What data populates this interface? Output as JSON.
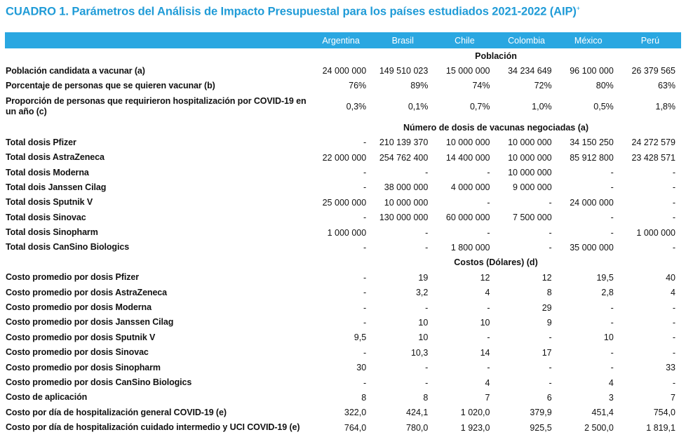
{
  "title": "CUADRO 1. Parámetros del Análisis de Impacto Presupuestal para los países estudiados 2021-2022 (AIP)",
  "title_sup": "+",
  "accent_color": "#2aa7e1",
  "title_color": "#1f9bd7",
  "countries": [
    "Argentina",
    "Brasil",
    "Chile",
    "Colombia",
    "México",
    "Perú"
  ],
  "sections": [
    {
      "heading": "Población",
      "rows": [
        {
          "label": "Población candidata a vacunar (a)",
          "values": [
            "24 000 000",
            "149 510 023",
            "15 000 000",
            "34 234 649",
            "96 100 000",
            "26 379 565"
          ]
        },
        {
          "label": "Porcentaje de personas que se quieren vacunar (b)",
          "values": [
            "76%",
            "89%",
            "74%",
            "72%",
            "80%",
            "63%"
          ]
        },
        {
          "label": "Proporción de personas que requirieron hospitalización por COVID-19 en un año (c)",
          "values": [
            "0,3%",
            "0,1%",
            "0,7%",
            "1,0%",
            "0,5%",
            "1,8%"
          ],
          "tall": true
        }
      ]
    },
    {
      "heading": "Número de dosis de vacunas negociadas (a)",
      "rows": [
        {
          "label": "Total dosis Pfizer",
          "values": [
            "-",
            "210 139 370",
            "10 000 000",
            "10 000 000",
            "34 150 250",
            "24 272 579"
          ]
        },
        {
          "label": "Total dosis AstraZeneca",
          "values": [
            "22 000 000",
            "254 762 400",
            "14 400 000",
            "10 000 000",
            "85 912 800",
            "23 428 571"
          ]
        },
        {
          "label": "Total dosis Moderna",
          "values": [
            "-",
            "-",
            "-",
            "10 000 000",
            "-",
            "-"
          ]
        },
        {
          "label": "Total dois Janssen Cilag",
          "values": [
            "-",
            "38 000 000",
            "4 000 000",
            "9 000 000",
            "-",
            "-"
          ]
        },
        {
          "label": "Total dosis Sputnik V",
          "values": [
            "25 000 000",
            "10 000 000",
            "-",
            "-",
            "24 000 000",
            "-"
          ]
        },
        {
          "label": "Total dosis Sinovac",
          "values": [
            "-",
            "130 000 000",
            "60 000 000",
            "7 500 000",
            "-",
            "-"
          ]
        },
        {
          "label": "Total dosis Sinopharm",
          "values": [
            "1 000 000",
            "-",
            "-",
            "-",
            "-",
            "1 000 000"
          ]
        },
        {
          "label": "Total dosis CanSino Biologics",
          "values": [
            "-",
            "-",
            "1 800 000",
            "-",
            "35 000 000",
            "-"
          ]
        }
      ]
    },
    {
      "heading": "Costos (Dólares) (d)",
      "rows": [
        {
          "label": "Costo promedio por dosis Pfizer",
          "values": [
            "-",
            "19",
            "12",
            "12",
            "19,5",
            "40"
          ]
        },
        {
          "label": "Costo promedio por dosis AstraZeneca",
          "values": [
            "-",
            "3,2",
            "4",
            "8",
            "2,8",
            "4"
          ]
        },
        {
          "label": "Costo promedio por dosis Moderna",
          "values": [
            "-",
            "-",
            "-",
            "29",
            "-",
            "-"
          ]
        },
        {
          "label": "Costo promedio por dosis Janssen Cilag",
          "values": [
            "-",
            "10",
            "10",
            "9",
            "-",
            "-"
          ]
        },
        {
          "label": "Costo promedio por dosis Sputnik V",
          "values": [
            "9,5",
            "10",
            "-",
            "-",
            "10",
            "-"
          ]
        },
        {
          "label": "Costo promedio por dosis Sinovac",
          "values": [
            "-",
            "10,3",
            "14",
            "17",
            "-",
            "-"
          ]
        },
        {
          "label": "Costo promedio por dosis Sinopharm",
          "values": [
            "30",
            "-",
            "-",
            "-",
            "-",
            "33"
          ]
        },
        {
          "label": "Costo promedio por dosis CanSino Biologics",
          "values": [
            "-",
            "-",
            "4",
            "-",
            "4",
            "-"
          ]
        },
        {
          "label": "Costo de aplicación",
          "values": [
            "8",
            "8",
            "7",
            "6",
            "3",
            "7"
          ]
        },
        {
          "label": "Costo por día de hospitalización general COVID-19 (e)",
          "values": [
            "322,0",
            "424,1",
            "1 020,0",
            "379,9",
            "451,4",
            "754,0"
          ]
        },
        {
          "label": "Costo por día de hospitalización cuidado intermedio y UCI COVID-19 (e)",
          "values": [
            "764,0",
            "780,0",
            "1 923,0",
            "925,5",
            "2 500,0",
            "1 819,1"
          ]
        }
      ]
    }
  ]
}
